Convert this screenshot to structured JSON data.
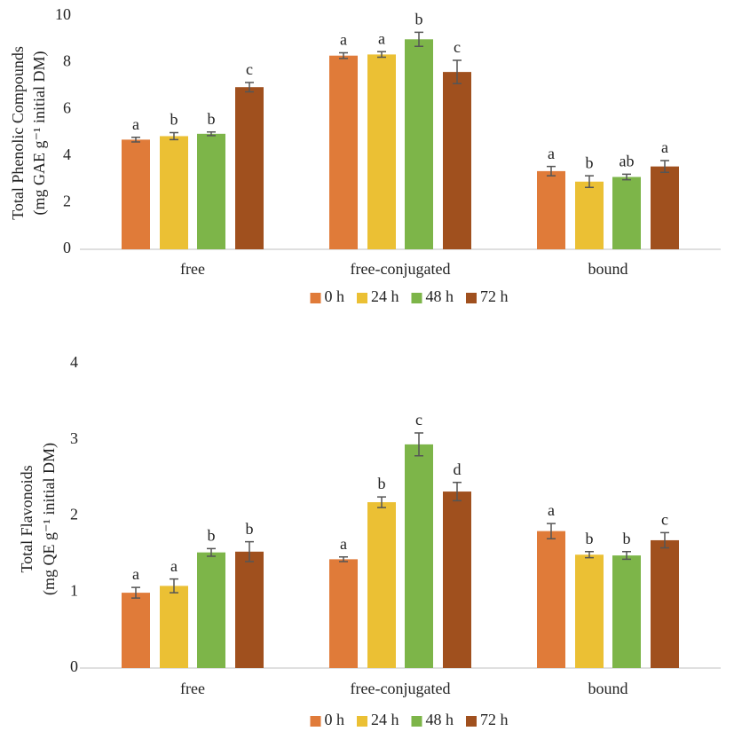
{
  "chart_data": [
    {
      "type": "bar",
      "y_label": [
        "Total Phenolic Compounds",
        "(mg GAE g⁻¹ initial DM)"
      ],
      "categories": [
        "free",
        "free-conjugated",
        "bound"
      ],
      "series": [
        {
          "name": "0 h",
          "color": "#e07b39",
          "values": [
            4.7,
            8.3,
            3.35
          ],
          "errors": [
            0.1,
            0.12,
            0.2
          ],
          "labels": [
            "a",
            "a",
            "a"
          ]
        },
        {
          "name": "24 h",
          "color": "#ebc034",
          "values": [
            4.85,
            8.35,
            2.9
          ],
          "errors": [
            0.15,
            0.12,
            0.25
          ],
          "labels": [
            "b",
            "a",
            "b"
          ]
        },
        {
          "name": "48 h",
          "color": "#7db549",
          "values": [
            4.95,
            9.0,
            3.1
          ],
          "errors": [
            0.08,
            0.3,
            0.12
          ],
          "labels": [
            "b",
            "b",
            "ab"
          ]
        },
        {
          "name": "72 h",
          "color": "#a0501e",
          "values": [
            6.95,
            7.6,
            3.55
          ],
          "errors": [
            0.2,
            0.5,
            0.25
          ],
          "labels": [
            "c",
            "c",
            "a"
          ]
        }
      ],
      "ylim": [
        0,
        10
      ],
      "yticks": [
        0,
        2,
        4,
        6,
        8,
        10
      ],
      "legend": "bottom"
    },
    {
      "type": "bar",
      "y_label": [
        "Total Flavonoids",
        "(mg QE g⁻¹ initial DM)"
      ],
      "categories": [
        "free",
        "free-conjugated",
        "bound"
      ],
      "series": [
        {
          "name": "0 h",
          "color": "#e07b39",
          "values": [
            0.99,
            1.43,
            1.8
          ],
          "errors": [
            0.07,
            0.03,
            0.1
          ],
          "labels": [
            "a",
            "a",
            "a"
          ]
        },
        {
          "name": "24 h",
          "color": "#ebc034",
          "values": [
            1.08,
            2.18,
            1.49
          ],
          "errors": [
            0.09,
            0.07,
            0.04
          ],
          "labels": [
            "a",
            "b",
            "b"
          ]
        },
        {
          "name": "48 h",
          "color": "#7db549",
          "values": [
            1.52,
            2.94,
            1.48
          ],
          "errors": [
            0.05,
            0.15,
            0.05
          ],
          "labels": [
            "b",
            "c",
            "b"
          ]
        },
        {
          "name": "72 h",
          "color": "#a0501e",
          "values": [
            1.53,
            2.32,
            1.68
          ],
          "errors": [
            0.13,
            0.12,
            0.1
          ],
          "labels": [
            "b",
            "d",
            "c"
          ]
        }
      ],
      "ylim": [
        0,
        4
      ],
      "yticks": [
        0,
        1,
        2,
        3,
        4
      ],
      "legend": "bottom"
    }
  ]
}
